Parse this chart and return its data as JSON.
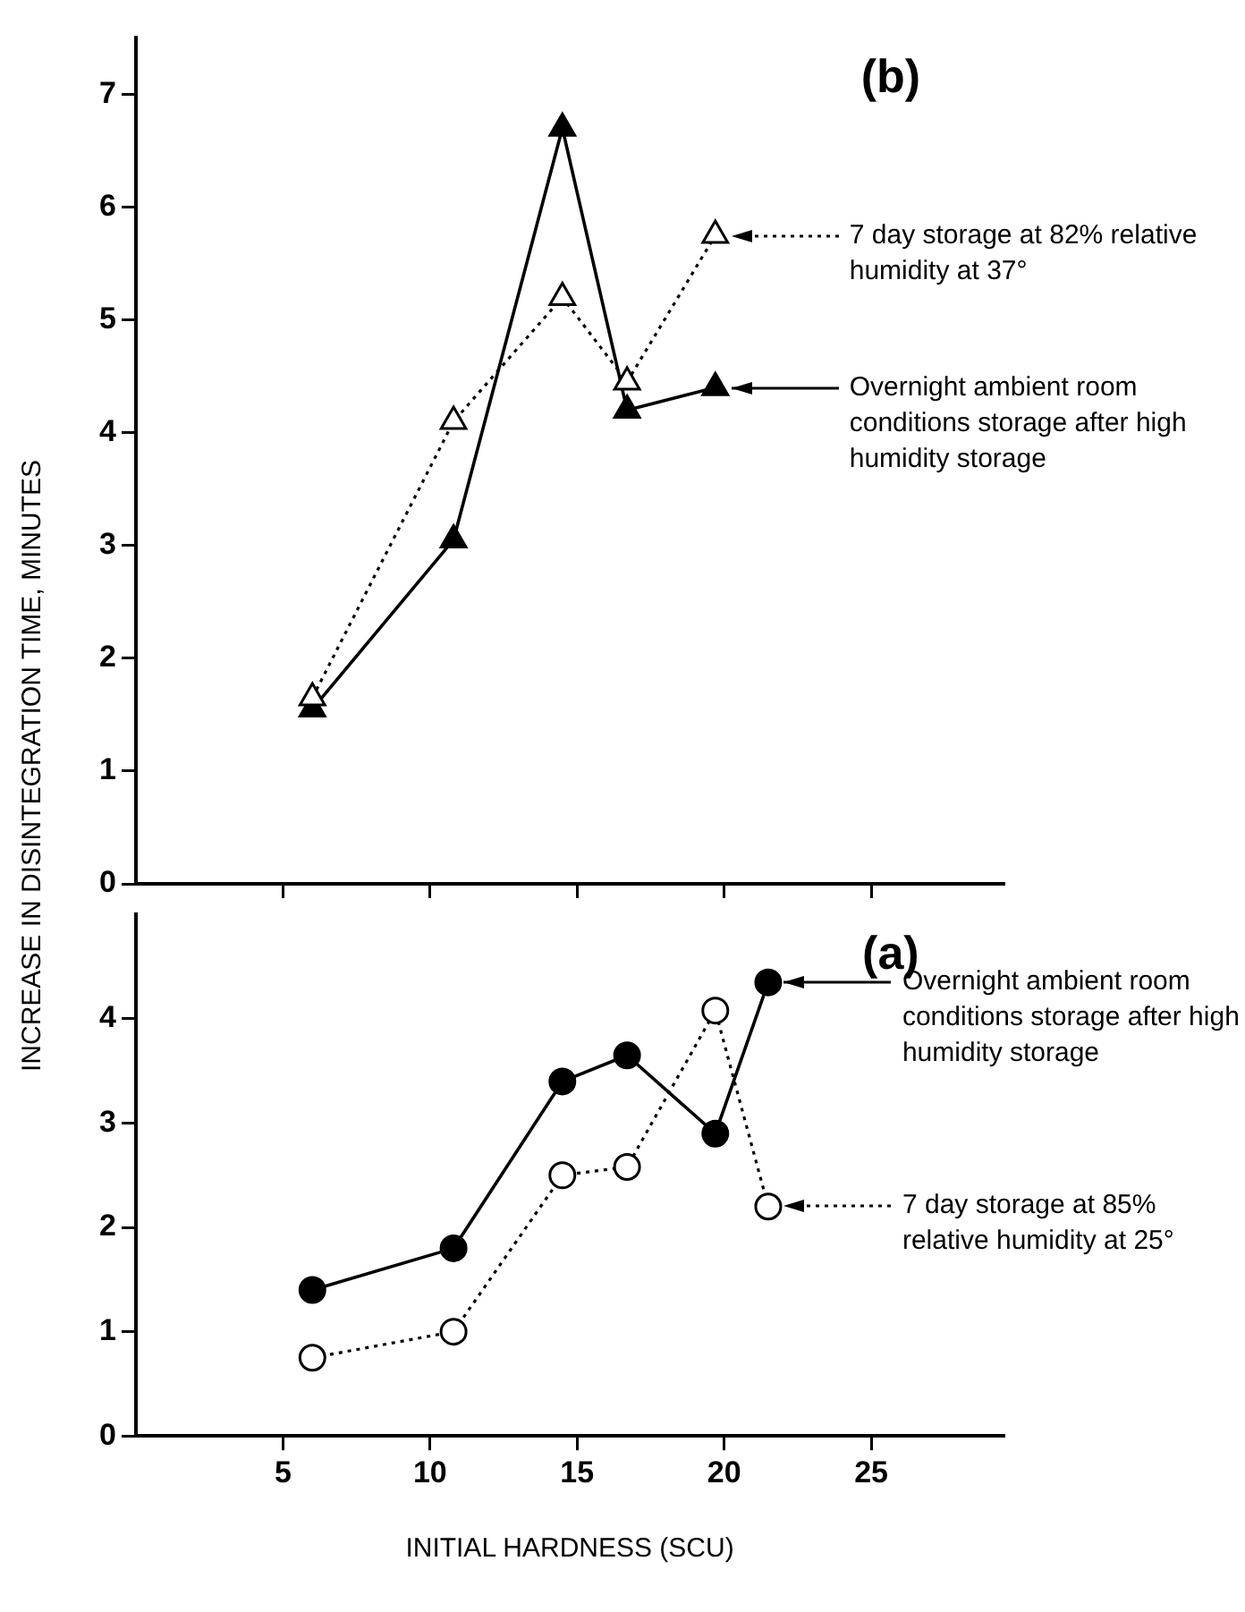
{
  "chart_data": [
    {
      "type": "line",
      "title": "(b)",
      "ylabel": "INCREASE IN DISINTEGRATION TIME, MINUTES",
      "xlim": [
        0,
        29.5
      ],
      "xticks": [
        5,
        10,
        15,
        20,
        25
      ],
      "ylim": [
        0,
        7.5
      ],
      "yticks": [
        0,
        1,
        2,
        3,
        4,
        5,
        6,
        7
      ],
      "tick_labels": "y",
      "grid": false,
      "legend": "right",
      "marker": "triangle",
      "series": [
        {
          "name": "7 day storage at 82% relative humidity at 37°",
          "color": "#000000",
          "line_style": "dotted",
          "x": [
            6,
            10.8,
            14.5,
            16.7,
            19.7
          ],
          "values": [
            1.65,
            4.1,
            5.2,
            4.45,
            5.75
          ]
        },
        {
          "name": "Overnight ambient room conditions storage after high humidity storage",
          "color": "#000000",
          "line_style": "solid",
          "x": [
            6,
            10.8,
            14.5,
            16.7,
            19.7
          ],
          "values": [
            1.55,
            3.05,
            6.7,
            4.2,
            4.4
          ]
        }
      ]
    },
    {
      "type": "line",
      "title": "(a)",
      "xlabel": "INITIAL HARDNESS (SCU)",
      "xlim": [
        0,
        29.5
      ],
      "xticks": [
        5,
        10,
        15,
        20,
        25
      ],
      "ylim": [
        0,
        5
      ],
      "yticks": [
        0,
        1,
        2,
        3,
        4
      ],
      "grid": false,
      "legend": "right",
      "marker": "circle",
      "series": [
        {
          "name": "Overnight ambient room conditions storage after high humidity storage",
          "color": "#000000",
          "line_style": "solid",
          "x": [
            6,
            10.8,
            14.5,
            16.7,
            19.7,
            21.5
          ],
          "values": [
            1.4,
            1.8,
            3.4,
            3.65,
            2.9,
            4.35
          ]
        },
        {
          "name": "7 day storage at 85% relative humidity at 25°",
          "color": "#000000",
          "line_style": "dotted",
          "x": [
            6,
            10.8,
            14.5,
            16.7,
            19.7,
            21.5
          ],
          "values": [
            0.75,
            1.0,
            2.5,
            2.58,
            4.08,
            2.2
          ]
        }
      ]
    }
  ]
}
